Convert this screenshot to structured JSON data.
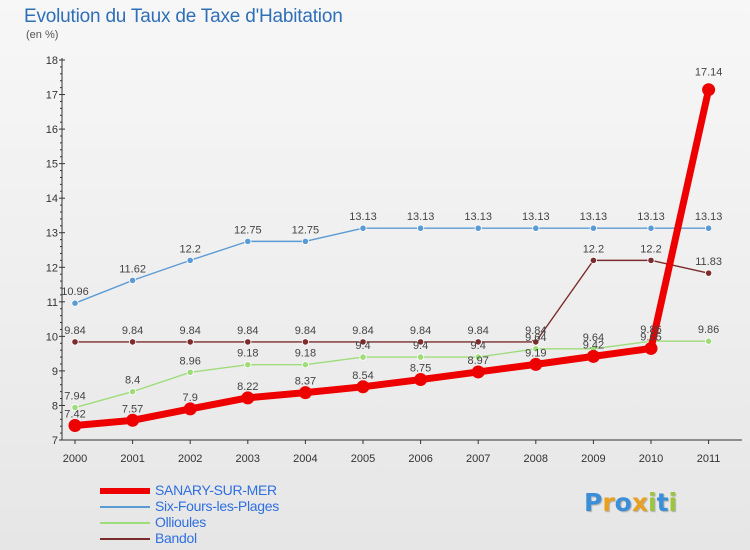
{
  "title": "Evolution du Taux de Taxe d'Habitation",
  "subtitle": "(en %)",
  "logo": {
    "text": "Proxiti",
    "letters": [
      "P",
      "r",
      "o",
      "x",
      "i",
      "t",
      "i"
    ],
    "colors": [
      "#3a8fd8",
      "#e8a020",
      "#3a8fd8",
      "#e8a020",
      "#9bc53d",
      "#3a8fd8",
      "#9bc53d"
    ]
  },
  "chart_data": {
    "type": "line",
    "title": "Evolution du Taux de Taxe d'Habitation",
    "subtitle": "(en %)",
    "xlabel": "",
    "ylabel": "",
    "x": [
      "2000",
      "2001",
      "2002",
      "2003",
      "2004",
      "2005",
      "2006",
      "2007",
      "2008",
      "2009",
      "2010",
      "2011"
    ],
    "ylim": [
      7,
      18
    ],
    "yticks": [
      "7",
      "8",
      "9",
      "10",
      "11",
      "12",
      "13",
      "14",
      "15",
      "16",
      "17",
      "18"
    ],
    "grid": "none",
    "legend_position": "bottom-left",
    "series": [
      {
        "name": "SANARY-SUR-MER",
        "color": "#ee0000",
        "values": [
          7.42,
          7.57,
          7.9,
          8.22,
          8.37,
          8.54,
          8.75,
          8.97,
          9.19,
          9.42,
          9.65,
          17.14
        ],
        "labels": [
          "7.42",
          "7.57",
          "7.9",
          "8.22",
          "8.37",
          "8.54",
          "8.75",
          "8.97",
          "9.19",
          "9.42",
          "9.65",
          "17.14"
        ]
      },
      {
        "name": "Six-Fours-les-Plages",
        "color": "#5b9bd5",
        "values": [
          10.96,
          11.62,
          12.2,
          12.75,
          12.75,
          13.13,
          13.13,
          13.13,
          13.13,
          13.13,
          13.13,
          13.13
        ],
        "labels": [
          "10.96",
          "11.62",
          "12.2",
          "12.75",
          "12.75",
          "13.13",
          "13.13",
          "13.13",
          "13.13",
          "13.13",
          "13.13",
          "13.13"
        ]
      },
      {
        "name": "Ollioules",
        "color": "#9fdc7a",
        "values": [
          7.94,
          8.4,
          8.96,
          9.18,
          9.18,
          9.4,
          9.4,
          9.4,
          9.64,
          9.64,
          9.86,
          9.86
        ],
        "labels": [
          "7.94",
          "8.4",
          "8.96",
          "9.18",
          "9.18",
          "9.4",
          "9.4",
          "9.4",
          "9.64",
          "9.64",
          "9.86",
          "9.86"
        ]
      },
      {
        "name": "Bandol",
        "color": "#7b2c2c",
        "values": [
          9.84,
          9.84,
          9.84,
          9.84,
          9.84,
          9.84,
          9.84,
          9.84,
          9.84,
          12.2,
          12.2,
          11.83
        ],
        "labels": [
          "9.84",
          "9.84",
          "9.84",
          "9.84",
          "9.84",
          "9.84",
          "9.84",
          "9.84",
          "9.84",
          "12.2",
          "12.2",
          "11.83"
        ]
      }
    ]
  }
}
